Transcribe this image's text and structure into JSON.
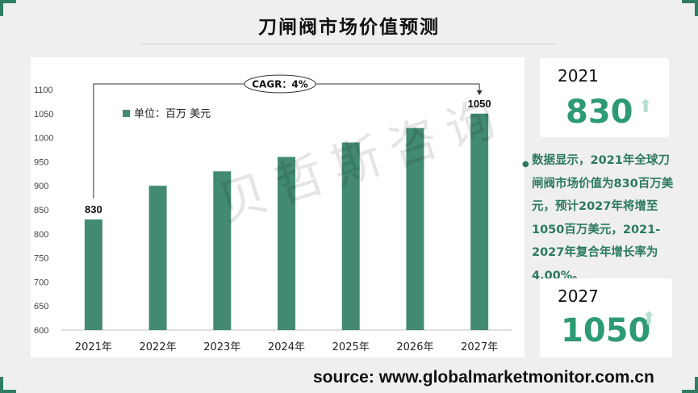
{
  "page": {
    "title": "刀闸阀市场价值预测",
    "watermark": "贝哲斯咨询",
    "source": "source: www.globalmarketmonitor.com.cn",
    "accent_color": "#2f7d63",
    "value_color": "#2c9a72"
  },
  "cards": [
    {
      "year": "2021",
      "value": "830",
      "arrow_icon": "up-arrow-icon"
    },
    {
      "year": "2027",
      "value": "1050",
      "arrow_icon": "up-arrow-icon"
    }
  ],
  "summary": {
    "text": "数据显示，2021年全球刀闸阀市场价值为830百万美元，预计2027年将增至1050百万美元，2021-2027年复合年增长率为4.00%。"
  },
  "chart_data": {
    "type": "bar",
    "categories": [
      "2021年",
      "2022年",
      "2023年",
      "2024年",
      "2025年",
      "2026年",
      "2027年"
    ],
    "values": [
      830,
      900,
      930,
      960,
      990,
      1020,
      1050
    ],
    "ylim": [
      600,
      1100
    ],
    "yticks": [
      600,
      650,
      700,
      750,
      800,
      850,
      900,
      950,
      1000,
      1050,
      1100
    ],
    "legend": "单位：百万 美元",
    "legend_position": "top-left",
    "bar_color": "#428a72",
    "data_labels": {
      "0": "830",
      "6": "1050"
    },
    "annotation": "CAGR：4%",
    "grid": false
  }
}
